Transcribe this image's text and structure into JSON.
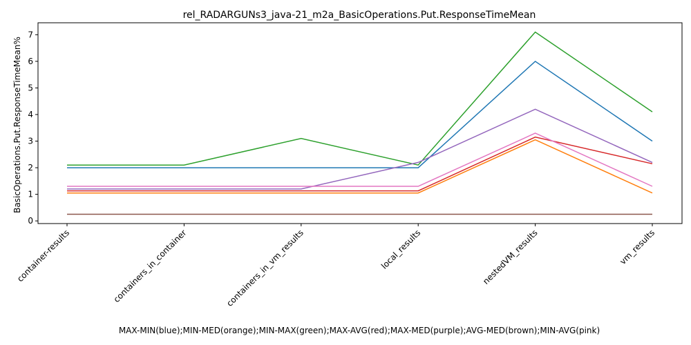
{
  "chart_data": {
    "type": "line",
    "title": "rel_RADARGUNs3_java-21_m2a_BasicOperations.Put.ResponseTimeMean",
    "xlabel": "MAX-MIN(blue);MIN-MED(orange);MIN-MAX(green);MAX-AVG(red);MAX-MED(purple);AVG-MED(brown);MIN-AVG(pink)",
    "ylabel": "BasicOperations.Put.ResponseTimeMean%",
    "categories": [
      "container-results",
      "containers_in_container",
      "containers_in_vm_results",
      "local_results",
      "nestedVM_results",
      "vm_results"
    ],
    "yticks": [
      "0",
      "1",
      "2",
      "3",
      "4",
      "5",
      "6",
      "7"
    ],
    "ylim": [
      -0.1,
      7.45
    ],
    "grid": false,
    "series": [
      {
        "color": "#1f77b4",
        "values": [
          2.0,
          2.0,
          2.0,
          2.0,
          6.0,
          3.0
        ]
      },
      {
        "color": "#ff7f0e",
        "values": [
          1.05,
          1.05,
          1.05,
          1.05,
          3.05,
          1.05
        ]
      },
      {
        "color": "#2ca02c",
        "values": [
          2.1,
          2.1,
          3.1,
          2.1,
          7.1,
          4.1
        ]
      },
      {
        "color": "#d62728",
        "values": [
          1.13,
          1.13,
          1.13,
          1.13,
          3.15,
          2.15
        ]
      },
      {
        "color": "#9467bd",
        "values": [
          1.2,
          1.2,
          1.2,
          2.2,
          4.2,
          2.2
        ]
      },
      {
        "color": "#8c564b",
        "values": [
          0.25,
          0.25,
          0.25,
          0.25,
          0.25,
          0.25
        ]
      },
      {
        "color": "#e377c2",
        "values": [
          1.3,
          1.3,
          1.3,
          1.3,
          3.3,
          1.3
        ]
      }
    ]
  }
}
